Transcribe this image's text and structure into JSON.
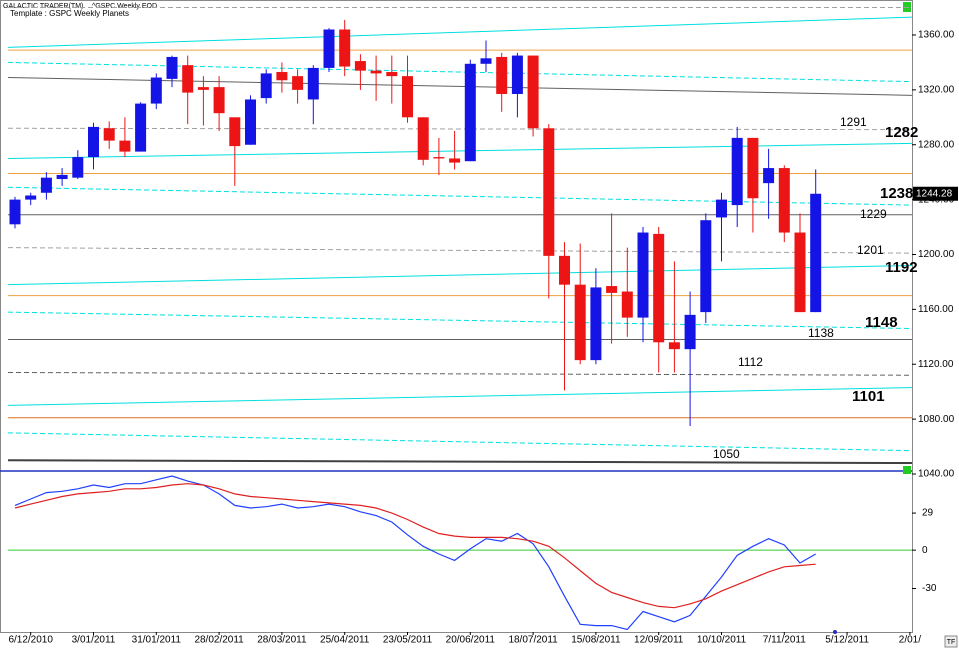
{
  "chart_data": [
    {
      "type": "candlestick",
      "header": "GALACTIC TRADER(TM)",
      "instrument": "^GSPC Weekly EOD",
      "subtitle": "Template : GSPC Weekly Planets",
      "corner_label": "TF",
      "up_color": "#1414e6",
      "down_color": "#ec1414",
      "categories": [
        null,
        "6/12/2010",
        null,
        null,
        null,
        "3/01/2011",
        null,
        null,
        null,
        "31/01/2011",
        null,
        null,
        null,
        "28/02/2011",
        null,
        null,
        null,
        "28/03/2011",
        null,
        null,
        null,
        "25/04/2011",
        null,
        null,
        null,
        "23/05/2011",
        null,
        null,
        null,
        "20/06/2011",
        null,
        null,
        null,
        "18/07/2011",
        null,
        null,
        null,
        "15/08/2011",
        null,
        null,
        null,
        "12/09/2011",
        null,
        null,
        null,
        "10/10/2011",
        null,
        null,
        null,
        "7/11/2011",
        null,
        null,
        null,
        "5/12/2011",
        null,
        null,
        null,
        "2/01/"
      ],
      "open": [
        1222,
        1240,
        1245,
        1255,
        1256,
        1271,
        1292,
        1283,
        1275,
        1310,
        1328,
        1338,
        1322,
        1322,
        1300,
        1280,
        1314,
        1333,
        1330,
        1313,
        1336,
        1364,
        1341,
        1334,
        1333,
        1330,
        1300,
        1271,
        1270,
        1268,
        1339,
        1344,
        1317,
        1345,
        1292,
        1199,
        1178,
        1123,
        1177,
        1173,
        1154,
        1215,
        1136,
        1131,
        1158,
        1227,
        1236,
        1285,
        1252,
        1263,
        1216,
        1158,
        null,
        null,
        null,
        null,
        null,
        null
      ],
      "high": [
        1242,
        1245,
        1260,
        1263,
        1276,
        1296,
        1297,
        1300,
        1311,
        1332,
        1345,
        1345,
        1330,
        1330,
        1300,
        1316,
        1335,
        1340,
        1335,
        1338,
        1365,
        1371,
        1346,
        1345,
        1345,
        1345,
        1300,
        1285,
        1290,
        1342,
        1356,
        1347,
        1347,
        1345,
        1295,
        1209,
        1208,
        1190,
        1230,
        1205,
        1220,
        1220,
        1195,
        1173,
        1230,
        1245,
        1293,
        1285,
        1277,
        1265,
        1230,
        1262,
        null,
        null,
        null,
        null,
        null,
        null
      ],
      "low": [
        1219,
        1236,
        1240,
        1250,
        1255,
        1262,
        1277,
        1271,
        1275,
        1306,
        1322,
        1295,
        1294,
        1290,
        1250,
        1280,
        1310,
        1318,
        1310,
        1295,
        1333,
        1330,
        1320,
        1312,
        1310,
        1296,
        1265,
        1258,
        1262,
        1268,
        1333,
        1304,
        1300,
        1286,
        1168,
        1101,
        1120,
        1120,
        1135,
        1140,
        1136,
        1114,
        1114,
        1075,
        1150,
        1195,
        1220,
        1216,
        1226,
        1209,
        1158,
        1158,
        null,
        null,
        null,
        null,
        null,
        null
      ],
      "close": [
        1240,
        1243,
        1256,
        1258,
        1271,
        1293,
        1283,
        1275,
        1310,
        1329,
        1344,
        1318,
        1320,
        1303,
        1279,
        1313,
        1332,
        1327,
        1320,
        1336,
        1364,
        1337,
        1334,
        1332,
        1330,
        1300,
        1269,
        1270,
        1267,
        1339,
        1343,
        1317,
        1345,
        1292,
        1199,
        1178,
        1123,
        1176,
        1172,
        1154,
        1216,
        1136,
        1131,
        1156,
        1225,
        1240,
        1285,
        1241,
        1263,
        1216,
        1158,
        1244.28,
        null,
        null,
        null,
        null,
        null,
        null
      ],
      "ylim": [
        1040,
        1385.5
      ],
      "yticks": [
        {
          "value": 1360,
          "label": "1360.00"
        },
        {
          "value": 1320,
          "label": "1320.00"
        },
        {
          "value": 1280,
          "label": "1280.00"
        },
        {
          "value": 1240,
          "label": "1240.00"
        },
        {
          "value": 1200,
          "label": "1200.00"
        },
        {
          "value": 1160,
          "label": "1160.00"
        },
        {
          "value": 1120,
          "label": "1120.00"
        },
        {
          "value": 1080,
          "label": "1080.00"
        },
        {
          "value": 1040,
          "label": "1040.00"
        }
      ],
      "levels": [
        {
          "start": 1380,
          "end": 1380,
          "color": "#a0a0a0",
          "style": "dashed"
        },
        {
          "start": 1351,
          "end": 1373,
          "color": "#00dede",
          "style": "solid"
        },
        {
          "start": 1349,
          "end": 1349,
          "color": "#f0a040",
          "style": "solid"
        },
        {
          "start": 1340,
          "end": 1326,
          "color": "#00dede",
          "style": "dashed"
        },
        {
          "start": 1329,
          "end": 1316,
          "color": "#606060",
          "style": "solid"
        },
        {
          "start": 1292,
          "end": 1291,
          "color": "#a0a0a0",
          "style": "dashed",
          "label": 1291,
          "label_color": "#000000"
        },
        {
          "start": 1270,
          "end": 1281,
          "color": "#00dede",
          "style": "solid",
          "label": 1282,
          "label_color": "#1020d0"
        },
        {
          "start": 1259,
          "end": 1259,
          "color": "#f0a040",
          "style": "solid"
        },
        {
          "start": 1249,
          "end": 1236,
          "color": "#00dede",
          "style": "dashed",
          "label": 1238,
          "label_color": "#1020d0"
        },
        {
          "start": 1229,
          "end": 1229,
          "color": "#606060",
          "style": "solid",
          "label": 1229,
          "label_color": "#000000"
        },
        {
          "start": 1205,
          "end": 1201,
          "color": "#a0a0a0",
          "style": "dashed",
          "label": 1201,
          "label_color": "#000000"
        },
        {
          "start": 1178,
          "end": 1192,
          "color": "#00dede",
          "style": "solid",
          "label": 1192,
          "label_color": "#1020d0"
        },
        {
          "start": 1170,
          "end": 1170,
          "color": "#f0a040",
          "style": "solid"
        },
        {
          "start": 1158,
          "end": 1146,
          "color": "#00dede",
          "style": "dashed",
          "label": 1148,
          "label_color": "#1020d0"
        },
        {
          "start": 1138,
          "end": 1138,
          "color": "#606060",
          "style": "solid",
          "label": 1138,
          "label_color": "#000000"
        },
        {
          "start": 1114,
          "end": 1112,
          "color": "#606060",
          "style": "dashed",
          "label": 1112,
          "label_color": "#000000"
        },
        {
          "start": 1090,
          "end": 1103,
          "color": "#00dede",
          "style": "solid",
          "label": 1101,
          "label_color": "#1020d0"
        },
        {
          "start": 1081,
          "end": 1081,
          "color": "#e07020",
          "style": "solid"
        },
        {
          "start": 1070,
          "end": 1057,
          "color": "#00dede",
          "style": "dashed"
        },
        {
          "start": 1050,
          "end": 1048,
          "color": "#404040",
          "style": "solid",
          "label": 1050,
          "label_color": "#000000"
        }
      ]
    },
    {
      "type": "line",
      "ylim": [
        -64,
        58
      ],
      "yticks": [
        29,
        0,
        -30
      ],
      "reference_line": 0,
      "reference_color": "#33cc33",
      "series": [
        {
          "color": "#2040ff",
          "values": [
            35,
            40,
            45,
            46,
            48,
            51,
            49,
            52,
            52,
            55,
            58,
            54,
            51,
            44,
            35,
            33,
            34,
            36,
            33,
            34,
            36,
            34,
            30,
            27,
            22,
            12,
            3,
            -3,
            -8,
            1,
            9,
            7,
            13,
            5,
            -13,
            -36,
            -58,
            -59,
            -59,
            -62,
            -48,
            -52,
            -56,
            -51,
            -36,
            -21,
            -4,
            3,
            9,
            4,
            -10,
            -3,
            null,
            null,
            null,
            null,
            null,
            null
          ]
        },
        {
          "color": "#e02020",
          "values": [
            33,
            36,
            39,
            42,
            44,
            45,
            46,
            48,
            48,
            49,
            51,
            52,
            51,
            48,
            44,
            42,
            41,
            40,
            39,
            38,
            37,
            36,
            35,
            33,
            29,
            24,
            18,
            13,
            11,
            10,
            10,
            10,
            9,
            7,
            3,
            -6,
            -16,
            -26,
            -33,
            -37,
            -41,
            -44,
            -45,
            -42,
            -38,
            -32,
            -27,
            -22,
            -17,
            -13,
            -12,
            -11,
            null,
            null,
            null,
            null,
            null,
            null
          ]
        }
      ]
    }
  ]
}
